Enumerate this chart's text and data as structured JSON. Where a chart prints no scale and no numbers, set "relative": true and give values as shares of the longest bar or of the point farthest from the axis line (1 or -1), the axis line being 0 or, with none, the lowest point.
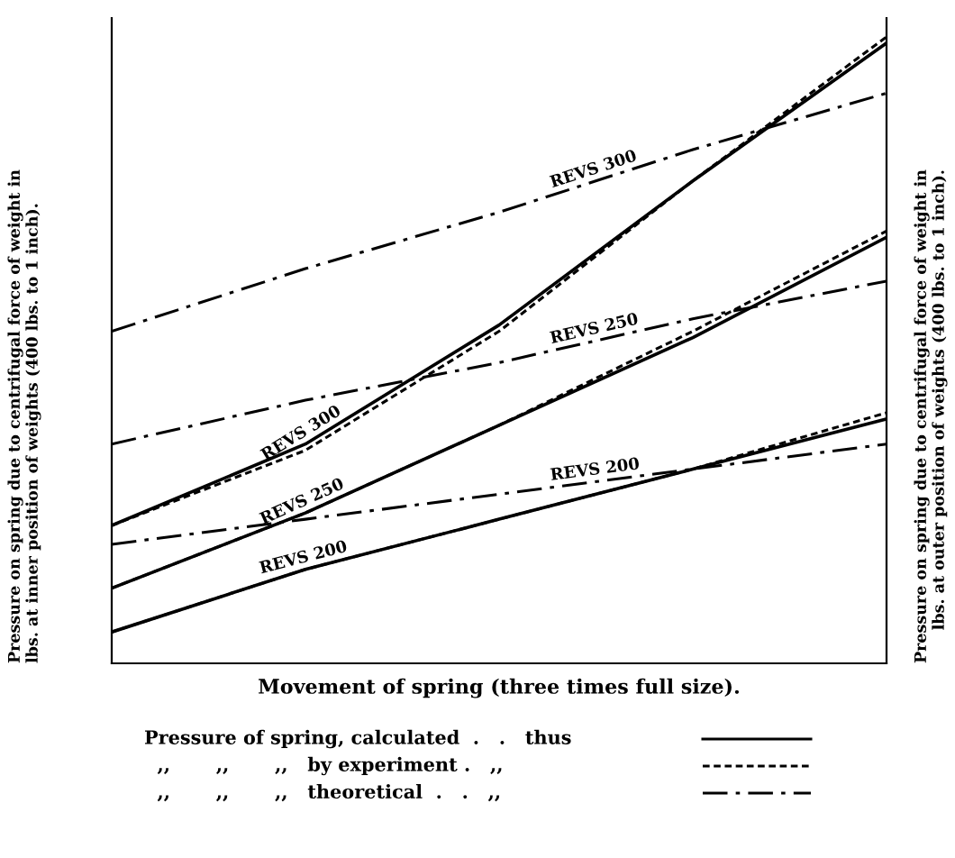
{
  "chart_data": {
    "type": "line",
    "relative": true,
    "xlabel": "Movement of spring (three times full size).",
    "ylabel": "Pressure on spring due to centrifugal force of weight in lbs. at inner position of weights (400 lbs. to 1 inch).",
    "y2label": "Pressure on spring due to centrifugal force of weight in lbs. at outer position of weights (400 lbs. to 1 inch).",
    "categories": [
      null,
      null,
      null,
      null,
      null
    ],
    "series": [
      {
        "name": "REVS 300",
        "color": "#000000",
        "line_style": "solid",
        "values": [
          0.22,
          0.35,
          0.54,
          0.77,
          0.99
        ]
      },
      {
        "color": "#000000",
        "line_style": "dotted",
        "values": [
          0.22,
          0.34,
          0.53,
          0.77,
          1.0
        ]
      },
      {
        "name": "REVS 300",
        "color": "#000000",
        "line_style": "dashed",
        "values": [
          0.53,
          0.63,
          0.72,
          0.82,
          0.91
        ]
      },
      {
        "name": "REVS 250",
        "color": "#000000",
        "line_style": "solid",
        "values": [
          0.12,
          0.24,
          0.38,
          0.52,
          0.68
        ]
      },
      {
        "color": "#000000",
        "line_style": "dotted",
        "values": [
          0.12,
          0.24,
          0.38,
          0.53,
          0.69
        ]
      },
      {
        "name": "REVS 250",
        "color": "#000000",
        "line_style": "dashed",
        "values": [
          0.35,
          0.42,
          0.48,
          0.55,
          0.61
        ]
      },
      {
        "name": "REVS 200",
        "color": "#000000",
        "line_style": "solid",
        "values": [
          0.05,
          0.15,
          0.23,
          0.31,
          0.39
        ]
      },
      {
        "color": "#000000",
        "line_style": "dotted",
        "values": [
          0.05,
          0.15,
          0.23,
          0.31,
          0.4
        ]
      },
      {
        "name": "REVS 200",
        "color": "#000000",
        "line_style": "dashed",
        "values": [
          0.19,
          0.23,
          0.27,
          0.31,
          0.35
        ]
      }
    ],
    "annotations": [
      "Pressure of spring, calculated  .   .   thus",
      "  ,,       ,,       ,,   by experiment .   ,,",
      "  ,,       ,,       ,,   theoretical  .   .   ,,"
    ],
    "legend": false,
    "marker": "none"
  }
}
